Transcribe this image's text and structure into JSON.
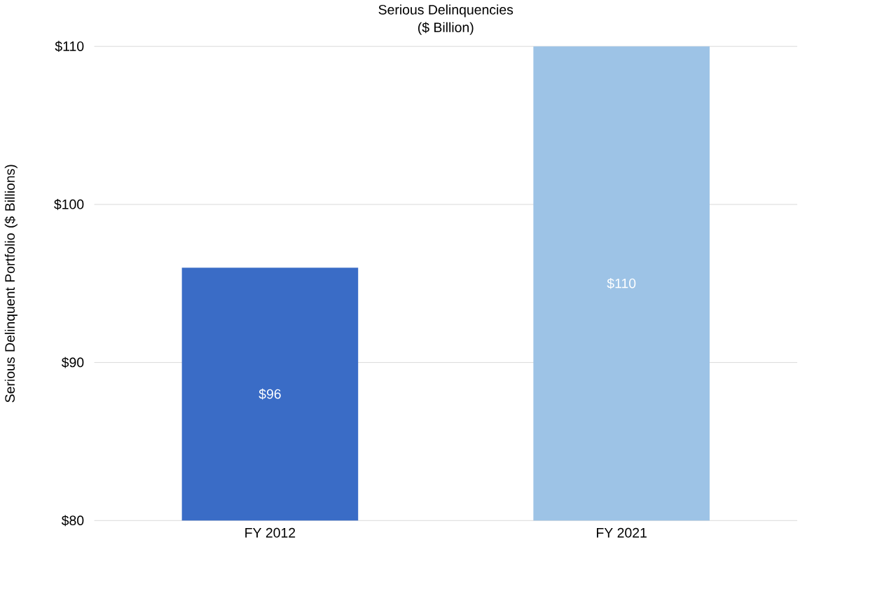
{
  "chart_data": {
    "type": "bar",
    "title": "Serious Delinquencies",
    "subtitle": "($ Billion)",
    "ylabel": "Serious Delinquent Portfolio ($ Billions)",
    "categories": [
      "FY 2012",
      "FY 2021"
    ],
    "values": [
      96,
      110
    ],
    "colors": [
      "#3a6cc6",
      "#9dc3e6"
    ],
    "value_labels": [
      "$96",
      "$110"
    ],
    "ylim": [
      80,
      110
    ],
    "yticks": [
      {
        "value": 80,
        "label": "$80"
      },
      {
        "value": 90,
        "label": "$90"
      },
      {
        "value": 100,
        "label": "$100"
      },
      {
        "value": 110,
        "label": "$110"
      }
    ],
    "grid": "y"
  }
}
